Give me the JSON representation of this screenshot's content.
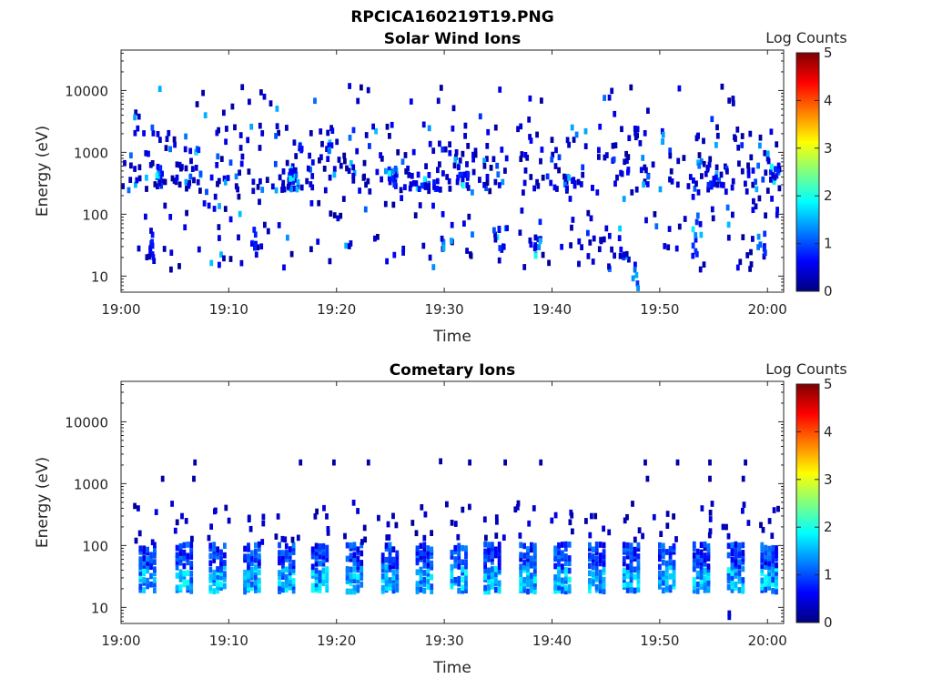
{
  "figure": {
    "title": "RPCICA160219T19.PNG"
  },
  "chart_data": [
    {
      "type": "heatmap",
      "title": "Solar Wind Ions",
      "xlabel": "Time",
      "ylabel": "Energy (eV)",
      "x_ticks": [
        "19:00",
        "19:10",
        "19:20",
        "19:30",
        "19:40",
        "19:50",
        "20:00"
      ],
      "xlim_minutes": [
        0,
        61.5
      ],
      "y_scale": "log",
      "y_ticks": [
        10,
        100,
        1000,
        10000
      ],
      "y_tick_labels": [
        "10",
        "100",
        "1000",
        "10000"
      ],
      "ylim": [
        5.5,
        45000
      ],
      "colorbar": {
        "label": "Log Counts",
        "min": 0,
        "max": 5,
        "ticks": [
          "0",
          "1",
          "2",
          "3",
          "4",
          "5"
        ],
        "colormap": "jet"
      },
      "clusters": [
        {
          "t": 2.7,
          "lo": 20,
          "hi": 55,
          "d": 0.3,
          "n": 9
        },
        {
          "t": 3.4,
          "lo": 280,
          "hi": 600,
          "d": 0.5,
          "n": 14
        },
        {
          "t": 6.7,
          "lo": 1000,
          "hi": 1400,
          "d": 1.0,
          "n": 5
        },
        {
          "t": 12.2,
          "lo": 22,
          "hi": 60,
          "d": 0.5,
          "n": 8
        },
        {
          "t": 15.8,
          "lo": 250,
          "hi": 600,
          "d": 1.0,
          "n": 24
        },
        {
          "t": 16.3,
          "lo": 1000,
          "hi": 1500,
          "d": 0.8,
          "n": 6
        },
        {
          "t": 19.5,
          "lo": 1000,
          "hi": 1500,
          "d": 1.0,
          "n": 6
        },
        {
          "t": 25.0,
          "lo": 300,
          "hi": 550,
          "d": 1.0,
          "n": 12
        },
        {
          "t": 28.2,
          "lo": 250,
          "hi": 450,
          "d": 2.0,
          "n": 14
        },
        {
          "t": 30.0,
          "lo": 20,
          "hi": 45,
          "d": 1.0,
          "n": 6
        },
        {
          "t": 31.8,
          "lo": 250,
          "hi": 450,
          "d": 1.0,
          "n": 12
        },
        {
          "t": 35.0,
          "lo": 20,
          "hi": 60,
          "d": 1.5,
          "n": 10
        },
        {
          "t": 38.3,
          "lo": 20,
          "hi": 80,
          "d": 1.0,
          "n": 12
        },
        {
          "t": 41.5,
          "lo": 250,
          "hi": 450,
          "d": 1.0,
          "n": 10
        },
        {
          "t": 46.5,
          "lo": 20,
          "hi": 60,
          "d": 1.0,
          "n": 8
        },
        {
          "t": 47.6,
          "lo": 6,
          "hi": 20,
          "d": 0.5,
          "n": 6
        },
        {
          "t": 53.2,
          "lo": 20,
          "hi": 80,
          "d": 1.0,
          "n": 10
        },
        {
          "t": 55.0,
          "lo": 250,
          "hi": 450,
          "d": 1.5,
          "n": 10
        },
        {
          "t": 60.5,
          "lo": 300,
          "hi": 650,
          "d": 0.8,
          "n": 12
        },
        {
          "t": 59.2,
          "lo": 20,
          "hi": 60,
          "d": 1.0,
          "n": 8
        }
      ]
    },
    {
      "type": "heatmap",
      "title": "Cometary Ions",
      "xlabel": "Time",
      "ylabel": "Energy (eV)",
      "x_ticks": [
        "19:00",
        "19:10",
        "19:20",
        "19:30",
        "19:40",
        "19:50",
        "20:00"
      ],
      "xlim_minutes": [
        0,
        61.5
      ],
      "y_scale": "log",
      "y_ticks": [
        10,
        100,
        1000,
        10000
      ],
      "y_tick_labels": [
        "10",
        "100",
        "1000",
        "10000"
      ],
      "ylim": [
        5.5,
        45000
      ],
      "colorbar": {
        "label": "Log Counts",
        "min": 0,
        "max": 5,
        "ticks": [
          "0",
          "1",
          "2",
          "3",
          "4",
          "5"
        ],
        "colormap": "jet"
      },
      "bursts_minutes": [
        2.3,
        5.7,
        8.8,
        12.0,
        15.2,
        18.3,
        21.5,
        24.8,
        28.0,
        31.2,
        34.3,
        37.6,
        40.8,
        44.0,
        47.2,
        50.5,
        53.7,
        56.9,
        60.0
      ],
      "burst_energy_range": [
        18,
        110
      ],
      "high_energy_dots": [
        {
          "t": 3.7,
          "e": 1200
        },
        {
          "t": 6.7,
          "e": 2200
        },
        {
          "t": 6.6,
          "e": 1200
        },
        {
          "t": 16.5,
          "e": 2200
        },
        {
          "t": 19.6,
          "e": 2200
        },
        {
          "t": 22.8,
          "e": 2200
        },
        {
          "t": 29.5,
          "e": 2300
        },
        {
          "t": 32.2,
          "e": 2200
        },
        {
          "t": 35.5,
          "e": 2200
        },
        {
          "t": 38.8,
          "e": 2200
        },
        {
          "t": 48.5,
          "e": 2200
        },
        {
          "t": 48.7,
          "e": 1200
        },
        {
          "t": 51.5,
          "e": 2200
        },
        {
          "t": 54.5,
          "e": 2200
        },
        {
          "t": 54.5,
          "e": 1200
        },
        {
          "t": 57.8,
          "e": 2200
        },
        {
          "t": 57.6,
          "e": 1200
        }
      ]
    }
  ]
}
